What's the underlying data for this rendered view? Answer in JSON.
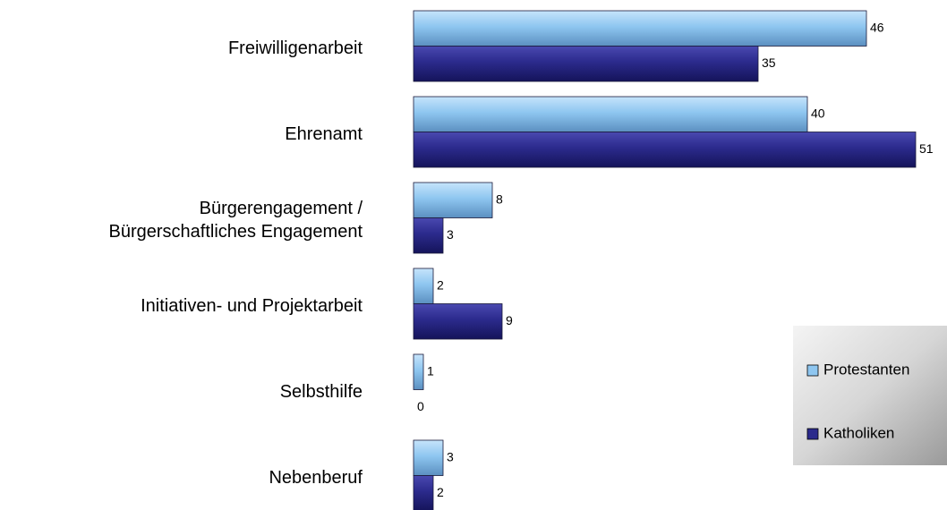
{
  "chart_data": {
    "type": "bar",
    "orientation": "horizontal",
    "categories": [
      "Freiwilligenarbeit",
      "Ehrenamt",
      "Bürgerengagement /\nBürgerschaftliches Engagement",
      "Initiativen- und Projektarbeit",
      "Selbsthilfe",
      "Nebenberuf"
    ],
    "series": [
      {
        "name": "Protestanten",
        "color": "#8ec6f0",
        "values": [
          46,
          40,
          8,
          2,
          1,
          3
        ]
      },
      {
        "name": "Katholiken",
        "color": "#2b2a8c",
        "values": [
          35,
          51,
          3,
          9,
          0,
          2
        ]
      }
    ],
    "legend": "right"
  }
}
